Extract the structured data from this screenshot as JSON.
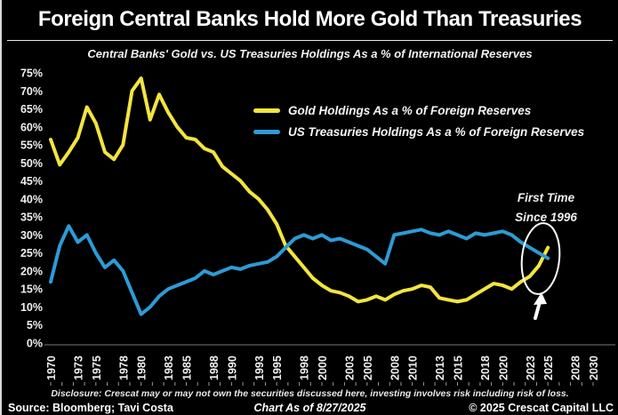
{
  "header": {
    "title": "Foreign Central Banks Hold More Gold Than Treasuries",
    "subtitle": "Central Banks' Gold vs. US Treasuries Holdings As a % of International Reserves"
  },
  "annotation": {
    "line1": "First Time",
    "line2": "Since 1996"
  },
  "footer": {
    "disclosure": "Disclosure: Crescat may or may not own the securities discussed here, investing involves risk including risk of loss.",
    "source": "Source: Bloomberg; Tavi Costa",
    "as_of": "Chart As of 8/27/2025",
    "copyright": "© 2025 Crescat Capital LLC"
  },
  "colors": {
    "background": "#000000",
    "gold_line": "#f3e53e",
    "treasuries_line": "#2d9bd5",
    "axis_text": "#f0f0f0",
    "annotation_stroke": "#ffffff"
  },
  "chart_data": {
    "type": "line",
    "title": "Foreign Central Banks Hold More Gold Than Treasuries",
    "subtitle": "Central Banks' Gold vs. US Treasuries Holdings As a % of International Reserves",
    "xlabel": "",
    "ylabel": "",
    "ylim": [
      0,
      75
    ],
    "ytick_step": 5,
    "ytick_format": "percent",
    "xlim": [
      1970,
      2030
    ],
    "xticks": [
      1970,
      1973,
      1975,
      1978,
      1980,
      1983,
      1985,
      1988,
      1990,
      1993,
      1995,
      1998,
      2000,
      2003,
      2005,
      2008,
      2010,
      2013,
      2015,
      2018,
      2020,
      2023,
      2025,
      2028,
      2030
    ],
    "grid": false,
    "legend_position": "upper-center",
    "x": [
      1970,
      1971,
      1972,
      1973,
      1974,
      1975,
      1976,
      1977,
      1978,
      1979,
      1980,
      1981,
      1982,
      1983,
      1984,
      1985,
      1986,
      1987,
      1988,
      1989,
      1990,
      1991,
      1992,
      1993,
      1994,
      1995,
      1996,
      1997,
      1998,
      1999,
      2000,
      2001,
      2002,
      2003,
      2004,
      2005,
      2006,
      2007,
      2008,
      2009,
      2010,
      2011,
      2012,
      2013,
      2014,
      2015,
      2016,
      2017,
      2018,
      2019,
      2020,
      2021,
      2022,
      2023,
      2024,
      2025
    ],
    "series": [
      {
        "name": "Gold Holdings As a % of Foreign Reserves",
        "color": "#f3e53e",
        "values": [
          56.5,
          49.5,
          53,
          57,
          65.5,
          61,
          53,
          51,
          55,
          70,
          73.5,
          62,
          69,
          64,
          60,
          57,
          56.5,
          54,
          53,
          49,
          47,
          45,
          42,
          40,
          37,
          33,
          27,
          24,
          21,
          18,
          16,
          14.5,
          14,
          13,
          11.5,
          12,
          13,
          12,
          13.5,
          14.5,
          15,
          16,
          15.5,
          12.5,
          12,
          11.5,
          12,
          13.5,
          15,
          16.5,
          16,
          15,
          17,
          18.5,
          21.5,
          26.5
        ]
      },
      {
        "name": "US Treasuries Holdings As a % of Foreign Reserves",
        "color": "#2d9bd5",
        "values": [
          17,
          27,
          32.5,
          28,
          30,
          25,
          21,
          23,
          20,
          14,
          8,
          10,
          13,
          15,
          16,
          17,
          18,
          20,
          19,
          20,
          21,
          20.5,
          21.5,
          22,
          22.5,
          24,
          26.5,
          29,
          30,
          29,
          30,
          28.5,
          29,
          28,
          27,
          26,
          24,
          22,
          30,
          30.5,
          31,
          31.5,
          30.5,
          30,
          31,
          30,
          29,
          30.5,
          30,
          30.5,
          31,
          30,
          28,
          26.5,
          25,
          23.5
        ]
      }
    ],
    "annotations": [
      {
        "text": "First Time Since 1996",
        "x": 2025,
        "y": 25,
        "note": "ellipse around gold/treasuries crossover with upward arrow"
      }
    ]
  }
}
